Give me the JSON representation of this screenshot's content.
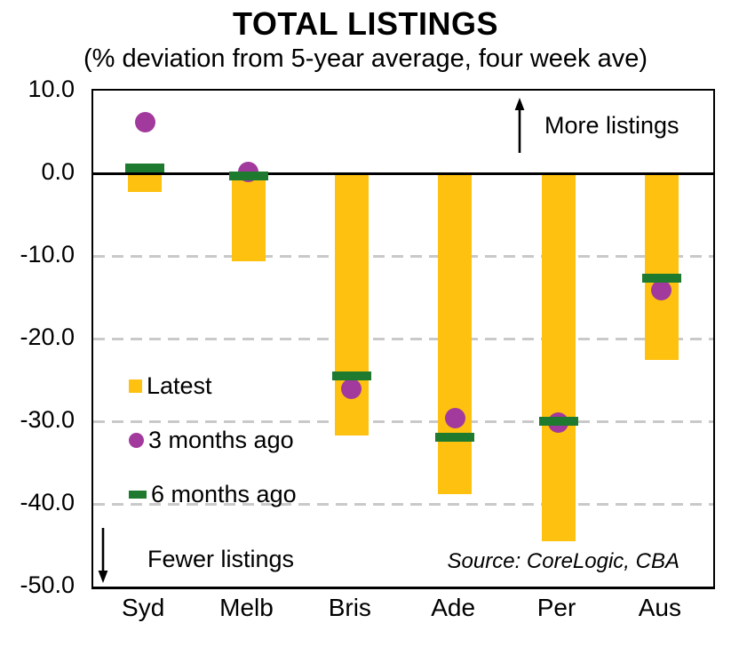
{
  "title": "TOTAL LISTINGS",
  "subtitle": "(% deviation from 5-year average, four week ave)",
  "annotations": {
    "more_listings": "More listings",
    "fewer_listings": "Fewer listings",
    "source": "Source: CoreLogic, CBA"
  },
  "legend": {
    "items": [
      {
        "label": "Latest",
        "marker": "square",
        "color": "#FEC110"
      },
      {
        "label": "3 months ago",
        "marker": "circle",
        "color": "#A23A9D"
      },
      {
        "label": "6 months ago",
        "marker": "dash",
        "color": "#1E7A2E"
      }
    ]
  },
  "chart_data": {
    "type": "bar",
    "title": "TOTAL LISTINGS",
    "subtitle": "(% deviation from 5-year average, four week ave)",
    "categories": [
      "Syd",
      "Melb",
      "Bris",
      "Ade",
      "Per",
      "Aus"
    ],
    "series": [
      {
        "name": "Latest",
        "type": "bar",
        "color": "#FEC110",
        "values": [
          -2.3,
          -10.6,
          -31.7,
          -38.8,
          -44.5,
          -22.6
        ]
      },
      {
        "name": "3 months ago",
        "type": "point",
        "color": "#A23A9D",
        "values": [
          6.2,
          0.2,
          -26.1,
          -29.6,
          -30.2,
          -14.1
        ]
      },
      {
        "name": "6 months ago",
        "type": "dash",
        "color": "#1E7A2E",
        "values": [
          0.6,
          -0.3,
          -24.5,
          -31.9,
          -30.0,
          -12.7
        ]
      }
    ],
    "ylim": [
      -50,
      10
    ],
    "yticks": [
      10,
      0,
      -10,
      -20,
      -30,
      -40,
      -50
    ],
    "ytick_labels": [
      "10.0",
      "0.0",
      "-10.0",
      "-20.0",
      "-30.0",
      "-40.0",
      "-50.0"
    ],
    "xlabel": "",
    "ylabel": "",
    "grid": "horizontal-dashed",
    "grid_color": "#C9C9C9",
    "zero_line": true,
    "legend_position": "inside-left"
  }
}
